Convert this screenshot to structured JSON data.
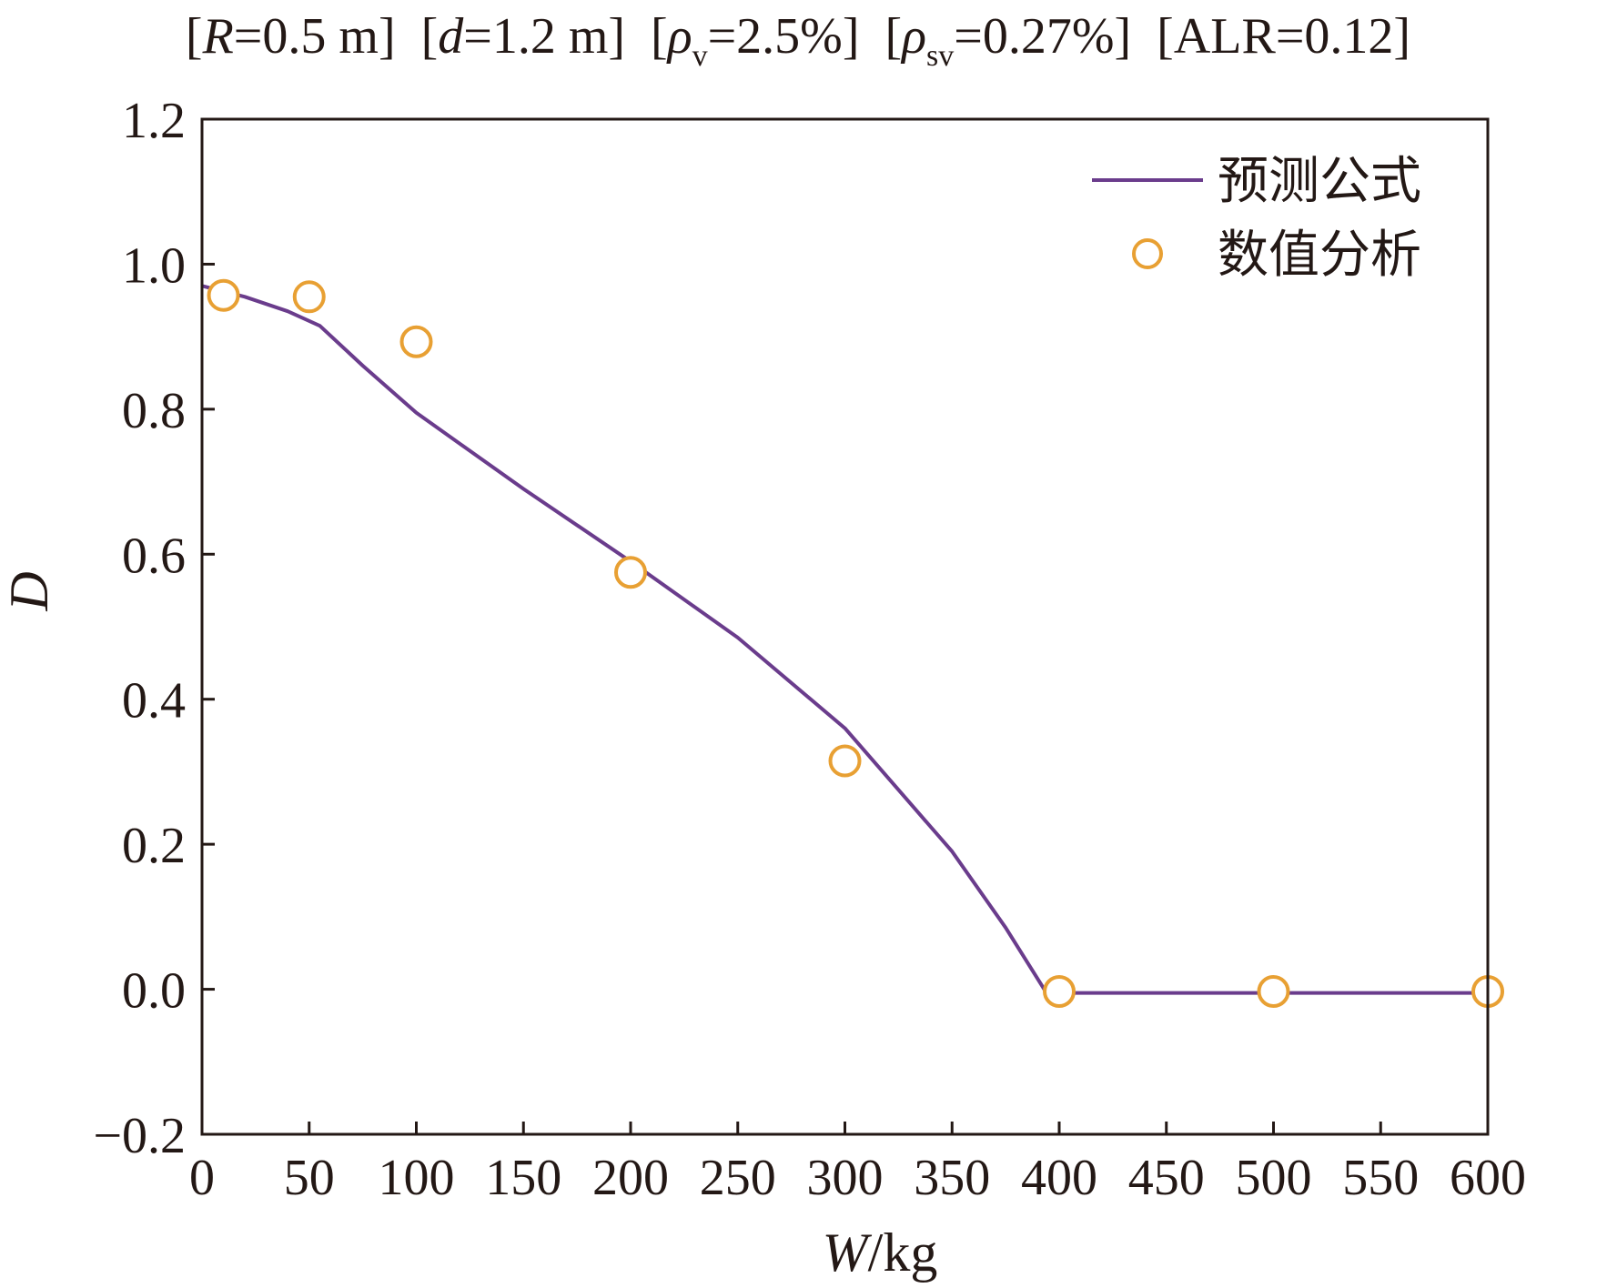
{
  "chart_data": {
    "type": "line",
    "title_parts": [
      {
        "var": "R",
        "sub": "",
        "rest": "=0.5 m"
      },
      {
        "var": "d",
        "sub": "",
        "rest": "=1.2 m"
      },
      {
        "var": "ρ",
        "sub": "v",
        "rest": "=2.5%"
      },
      {
        "var": "ρ",
        "sub": "sv",
        "rest": "=0.27%"
      },
      {
        "var": "",
        "sub": "",
        "rest": "ALR=0.12"
      }
    ],
    "xlabel": {
      "var": "W",
      "rest": "/kg"
    },
    "ylabel": "D",
    "xlim": [
      0,
      600
    ],
    "ylim": [
      -0.2,
      1.2
    ],
    "xticks": [
      0,
      50,
      100,
      150,
      200,
      250,
      300,
      350,
      400,
      450,
      500,
      550,
      600
    ],
    "yticks": [
      -0.2,
      0.0,
      0.2,
      0.4,
      0.6,
      0.8,
      1.0,
      1.2
    ],
    "ytick_labels": [
      "−0.2",
      "0.0",
      "0.2",
      "0.4",
      "0.6",
      "0.8",
      "1.0",
      "1.2"
    ],
    "legend_position": "top-right",
    "series": [
      {
        "name": "预测公式",
        "kind": "line",
        "color": "#6a3c8c",
        "x": [
          0,
          20,
          40,
          55,
          75,
          100,
          150,
          200,
          250,
          300,
          350,
          375,
          393,
          400,
          450,
          500,
          550,
          600
        ],
        "y": [
          0.97,
          0.955,
          0.935,
          0.915,
          0.86,
          0.795,
          0.69,
          0.59,
          0.485,
          0.36,
          0.19,
          0.085,
          0.0,
          -0.005,
          -0.005,
          -0.005,
          -0.005,
          -0.005
        ]
      },
      {
        "name": "数值分析",
        "kind": "scatter",
        "color": "#e8a033",
        "x": [
          10,
          50,
          100,
          200,
          300,
          400,
          500,
          600
        ],
        "y": [
          0.957,
          0.955,
          0.893,
          0.575,
          0.315,
          -0.003,
          -0.003,
          -0.003
        ]
      }
    ]
  }
}
